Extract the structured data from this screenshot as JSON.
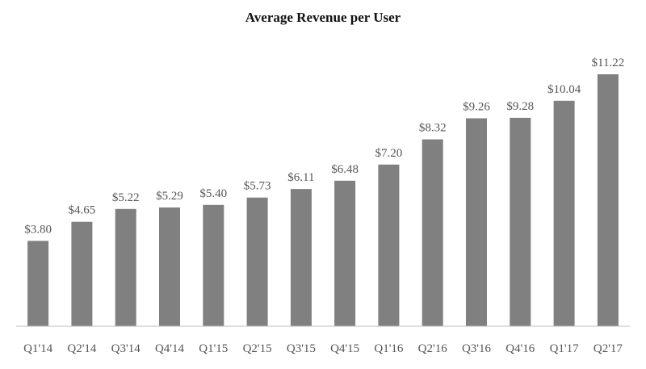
{
  "chart_data": {
    "type": "bar",
    "title": "Average Revenue per User",
    "xlabel": "",
    "ylabel": "",
    "categories": [
      "Q1'14",
      "Q2'14",
      "Q3'14",
      "Q4'14",
      "Q1'15",
      "Q2'15",
      "Q3'15",
      "Q4'15",
      "Q1'16",
      "Q2'16",
      "Q3'16",
      "Q4'16",
      "Q1'17",
      "Q2'17"
    ],
    "values": [
      3.8,
      4.65,
      5.22,
      5.29,
      5.4,
      5.73,
      6.11,
      6.48,
      7.2,
      8.32,
      9.26,
      9.28,
      10.04,
      11.22
    ],
    "data_labels": [
      "$3.80",
      "$4.65",
      "$5.22",
      "$5.29",
      "$5.40",
      "$5.73",
      "$6.11",
      "$6.48",
      "$7.20",
      "$8.32",
      "$9.26",
      "$9.28",
      "$10.04",
      "$11.22"
    ],
    "ylim": [
      0,
      11.22
    ],
    "grid": false,
    "legend": "none",
    "colors": {
      "bar": "#808080",
      "axis": "#bfbfbf",
      "text": "#555555",
      "title": "#111111"
    }
  }
}
